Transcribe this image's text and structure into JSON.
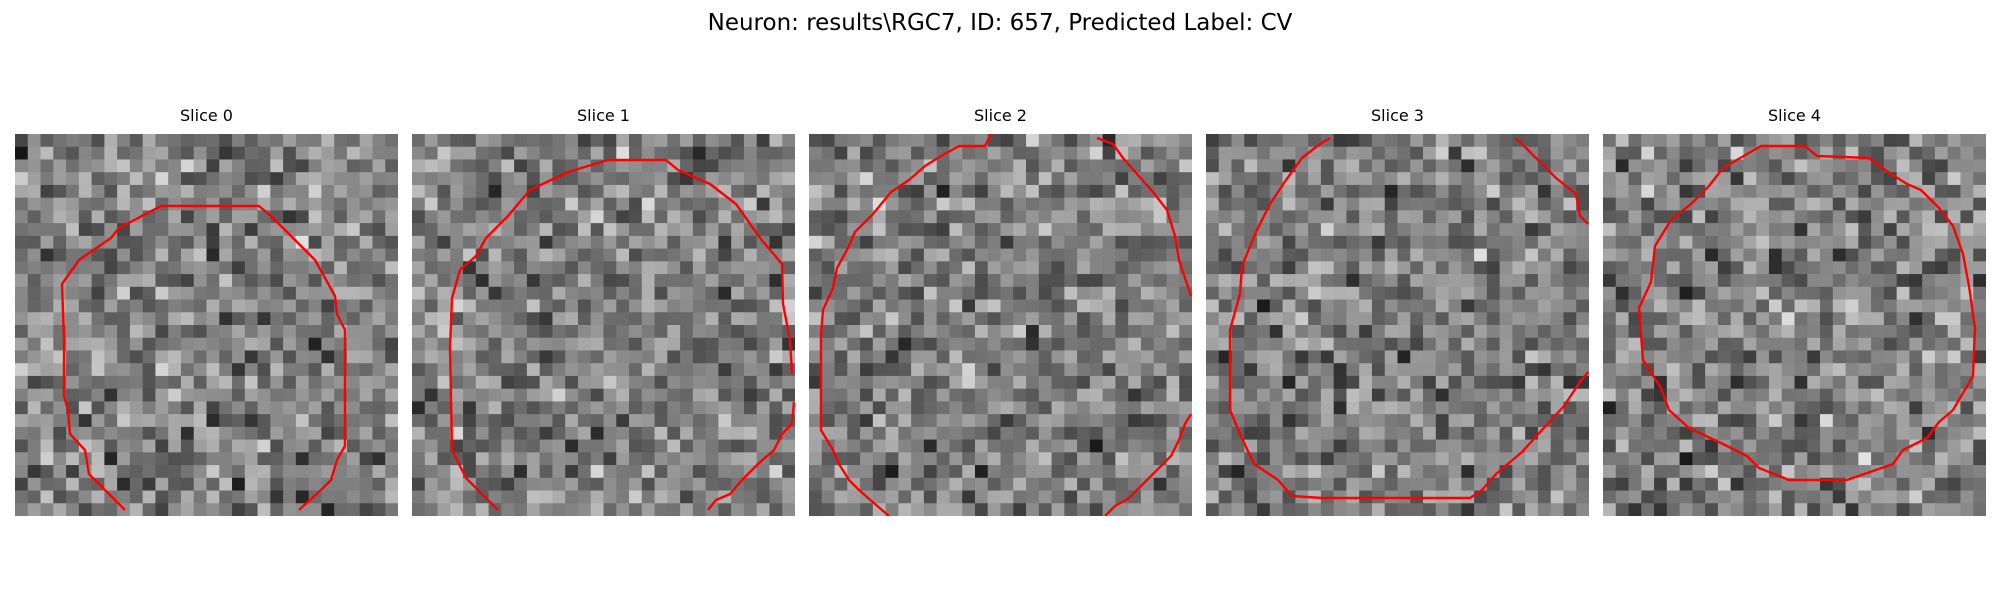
{
  "figure": {
    "title": "Neuron: results\\RGC7, ID: 657, Predicted Label: CV"
  },
  "colors": {
    "contour": "#ff0000",
    "background": "#ffffff"
  },
  "panels": [
    {
      "title": "Slice 0"
    },
    {
      "title": "Slice 1"
    },
    {
      "title": "Slice 2"
    },
    {
      "title": "Slice 3"
    },
    {
      "title": "Slice 4"
    }
  ]
}
